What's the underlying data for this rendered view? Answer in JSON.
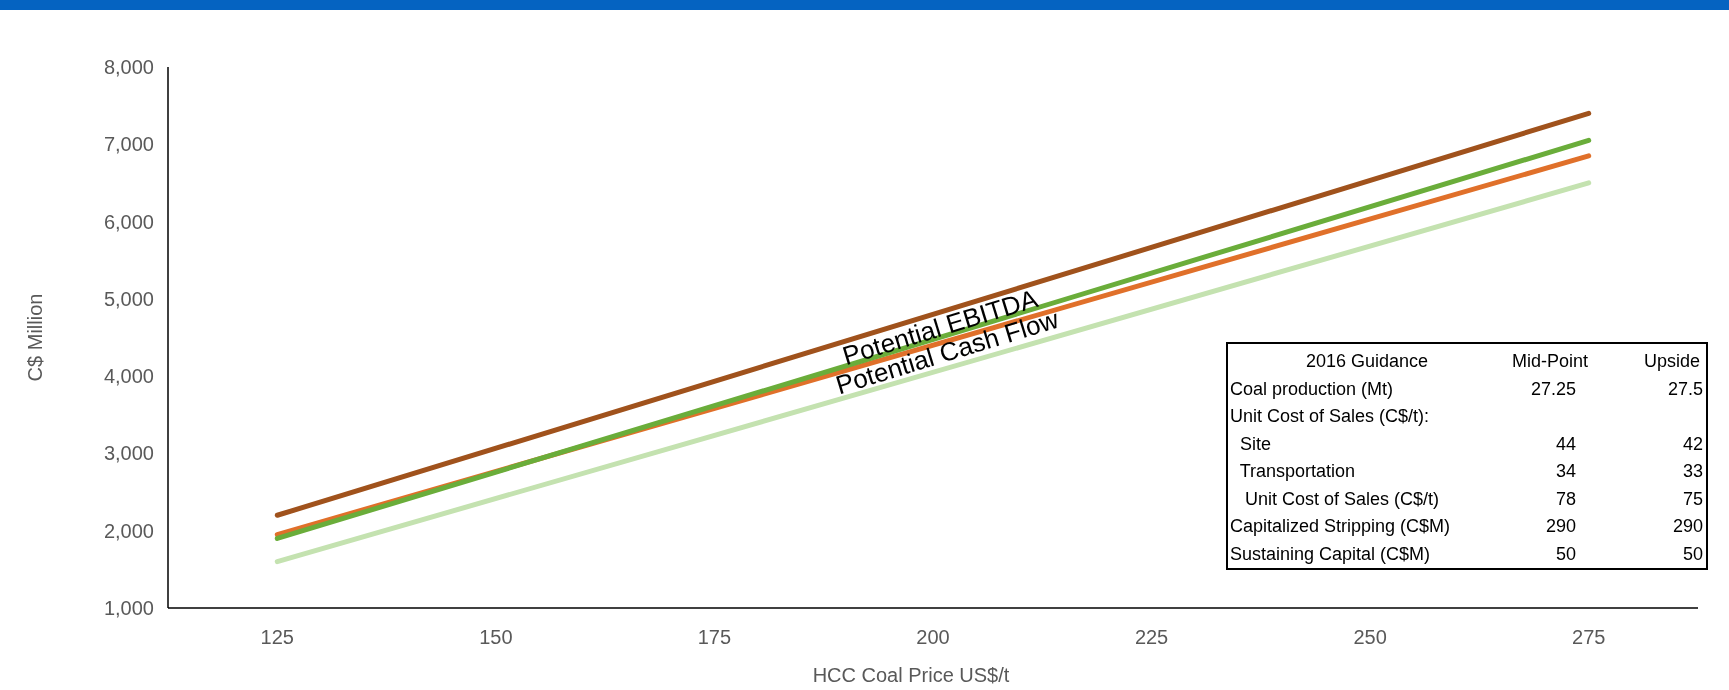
{
  "chart_data": {
    "type": "line",
    "xlabel": "HCC Coal Price US$/t",
    "ylabel": "C$ Million",
    "x": [
      125,
      275
    ],
    "series": [
      {
        "color": "#a0521c",
        "values": [
          2200,
          7400
        ]
      },
      {
        "color": "#e0702a",
        "values": [
          1950,
          6850
        ]
      },
      {
        "color": "#6aad3a",
        "values": [
          1900,
          7050
        ]
      },
      {
        "color": "#c4e2b0",
        "values": [
          1600,
          6500
        ]
      }
    ],
    "xlim": [
      112.5,
      287.5
    ],
    "xticks": [
      125,
      150,
      175,
      200,
      225,
      250,
      275
    ],
    "ylim": [
      1000,
      8000
    ],
    "yticks": [
      {
        "value": 1000,
        "label": "1,000"
      },
      {
        "value": 2000,
        "label": "2,000"
      },
      {
        "value": 3000,
        "label": "3,000"
      },
      {
        "value": 4000,
        "label": "4,000"
      },
      {
        "value": 5000,
        "label": "5,000"
      },
      {
        "value": 6000,
        "label": "6,000"
      },
      {
        "value": 7000,
        "label": "7,000"
      },
      {
        "value": 8000,
        "label": "8,000"
      }
    ],
    "grid": false,
    "marker": "none",
    "line_style": "solid",
    "annotations": [
      "Potential EBITDA",
      "Potential Cash Flow",
      "2016 Guidance",
      "Mid-Point",
      "Upside",
      "Coal production (Mt)",
      "27.25",
      "27.5",
      "Unit Cost of Sales (C$/t):",
      "  Site",
      "44",
      "42",
      "  Transportation",
      "34",
      "33",
      "   Unit Cost of Sales (C$/t)",
      "78",
      "75",
      "Capitalized Stripping (C$M)",
      "290",
      "290",
      "Sustaining Capital (C$M)",
      "50",
      "50"
    ]
  }
}
